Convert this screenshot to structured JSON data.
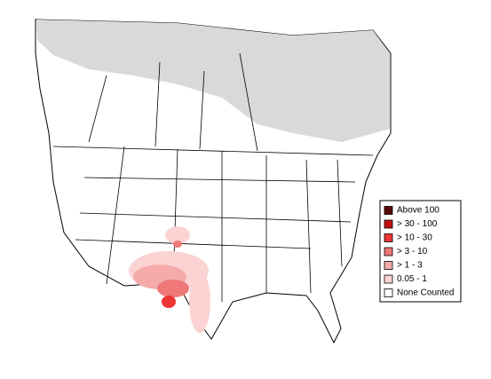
{
  "legend": {
    "items": [
      {
        "label": "Above 100",
        "color": "#5c0a0a"
      },
      {
        "label": "> 30 - 100",
        "color": "#c41010"
      },
      {
        "label": "> 10 - 30",
        "color": "#ee3535"
      },
      {
        "label": "> 3 - 10",
        "color": "#f07878"
      },
      {
        "label": "> 1 - 3",
        "color": "#f6abab"
      },
      {
        "label": "0.05 - 1",
        "color": "#fbd3d3"
      },
      {
        "label": "None Counted",
        "color": "#ffffff"
      }
    ]
  }
}
